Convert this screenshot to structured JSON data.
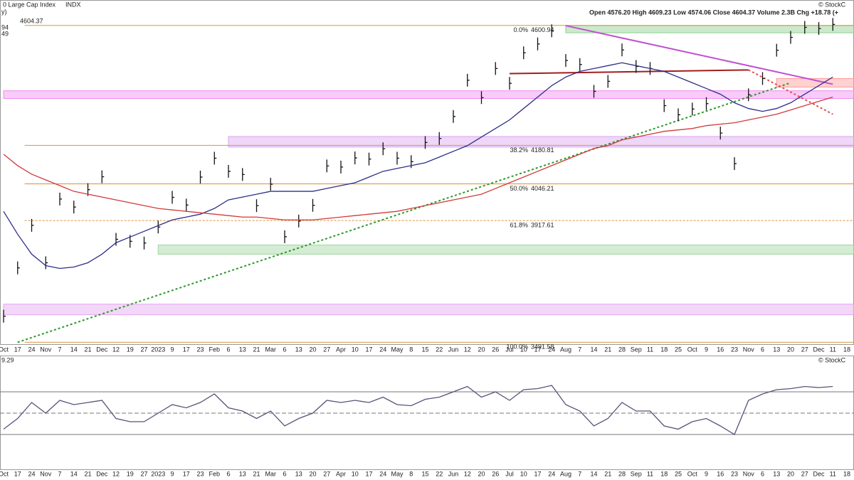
{
  "chart_data": {
    "type": "ohlc",
    "title": "0 Large Cap Index",
    "exchange": "INDX",
    "last_price": 4604.37,
    "legend_fragments": [
      "y)",
      "94",
      "49"
    ],
    "quote": "Open 4576.20  High 4609.23  Low 4574.06  Close 4604.37  Volume 2.3B  Chg +18.78 (+",
    "watermark": "© StockC",
    "categories": [
      "Oct",
      "17",
      "24",
      "Nov",
      "7",
      "14",
      "21",
      "Dec",
      "12",
      "19",
      "27",
      "2023",
      "9",
      "17",
      "23",
      "Feb",
      "6",
      "13",
      "21",
      "Mar",
      "6",
      "13",
      "20",
      "27",
      "Apr",
      "10",
      "17",
      "24",
      "May",
      "8",
      "15",
      "22",
      "Jun",
      "12",
      "20",
      "26",
      "Jul",
      "10",
      "17",
      "24",
      "Aug",
      "7",
      "14",
      "21",
      "28",
      "Sep",
      "11",
      "18",
      "25",
      "Oct",
      "9",
      "16",
      "23",
      "Nov",
      "6",
      "13",
      "20",
      "27",
      "Dec",
      "11",
      "18"
    ],
    "ylim": [
      3470,
      4640
    ],
    "series": [
      {
        "name": "Price",
        "color": "#111111",
        "values": [
          3583,
          3752,
          3901,
          3770,
          3993,
          3965,
          4026,
          4071,
          3852,
          3845,
          3839,
          3895,
          3999,
          3972,
          4070,
          4136,
          4090,
          4079,
          3970,
          4045,
          3861,
          3916,
          3971,
          4109,
          4105,
          4137,
          4133,
          4169,
          4136,
          4124,
          4191,
          4205,
          4282,
          4409,
          4348,
          4450,
          4398,
          4505,
          4536,
          4582,
          4478,
          4464,
          4370,
          4405,
          4515,
          4457,
          4450,
          4320,
          4288,
          4308,
          4327,
          4224,
          4117,
          4358,
          4415,
          4514,
          4559,
          4594,
          4590,
          4604.37,
          null
        ]
      },
      {
        "name": "MA50",
        "color": "#2e2e8a",
        "values": [
          3950,
          3870,
          3800,
          3760,
          3750,
          3755,
          3770,
          3800,
          3840,
          3860,
          3880,
          3900,
          3920,
          3930,
          3940,
          3960,
          3990,
          4000,
          4010,
          4020,
          4020,
          4020,
          4020,
          4030,
          4040,
          4050,
          4070,
          4090,
          4100,
          4110,
          4120,
          4140,
          4160,
          4180,
          4210,
          4240,
          4270,
          4310,
          4350,
          4390,
          4420,
          4440,
          4450,
          4460,
          4470,
          4460,
          4450,
          4440,
          4420,
          4400,
          4380,
          4360,
          4330,
          4310,
          4300,
          4310,
          4330,
          4360,
          4390,
          4420,
          null
        ]
      },
      {
        "name": "MA200",
        "color": "#d03a3a",
        "values": [
          4150,
          4110,
          4080,
          4060,
          4040,
          4020,
          4010,
          4000,
          3990,
          3980,
          3970,
          3960,
          3955,
          3950,
          3945,
          3940,
          3935,
          3930,
          3930,
          3925,
          3920,
          3920,
          3920,
          3925,
          3930,
          3935,
          3940,
          3945,
          3950,
          3960,
          3970,
          3980,
          3990,
          4000,
          4010,
          4030,
          4050,
          4070,
          4090,
          4110,
          4130,
          4150,
          4170,
          4180,
          4200,
          4210,
          4220,
          4230,
          4235,
          4240,
          4250,
          4255,
          4260,
          4270,
          4280,
          4290,
          4305,
          4320,
          4335,
          4350,
          null
        ]
      }
    ],
    "fib_levels": [
      {
        "label": "0.0%",
        "value": 4600.94,
        "color": "#e0a050",
        "dash": false
      },
      {
        "label": "38.2%",
        "value": 4180.81,
        "color": "#e0a050",
        "dash": false
      },
      {
        "label": "50.0%",
        "value": 4046.21,
        "color": "#e0a050",
        "dash": false
      },
      {
        "label": "61.8%",
        "value": 3917.61,
        "color": "#e0a050",
        "dash": true
      },
      {
        "label": "100.0%",
        "value": 3491.58,
        "color": "#e0a050",
        "dash": false
      }
    ],
    "zones": [
      {
        "low": 4575,
        "high": 4600,
        "from": 40,
        "color": "#8fcf8f"
      },
      {
        "low": 4385,
        "high": 4415,
        "from": 55,
        "color": "#ff9a9a"
      },
      {
        "low": 4345,
        "high": 4372,
        "from": 0,
        "color": "#f08cf0"
      },
      {
        "low": 4175,
        "high": 4212,
        "from": 16,
        "color": "#d9a6f0"
      },
      {
        "low": 3800,
        "high": 3832,
        "from": 11,
        "color": "#9fd49f"
      },
      {
        "low": 3588,
        "high": 3625,
        "from": 0,
        "color": "#e3a6f0"
      }
    ],
    "trendlines": [
      {
        "x0": 1,
        "y0": 3491.58,
        "x1": 56,
        "y1": 4400,
        "color": "#2a9a2a",
        "dash": true
      },
      {
        "x0": 40,
        "y0": 4600,
        "x1": 59,
        "y1": 4395,
        "color": "#c050d0",
        "dash": false
      },
      {
        "x0": 36,
        "y0": 4432,
        "x1": 53,
        "y1": 4445,
        "color": "#a01e1e",
        "dash": false
      },
      {
        "x0": 53,
        "y0": 4445,
        "x1": 59,
        "y1": 4290,
        "color": "#e05050",
        "dash": true
      }
    ],
    "rsi": {
      "label": "9.29",
      "color": "#55557a",
      "ylim": [
        0,
        100
      ],
      "levels": [
        70,
        50,
        30
      ],
      "values": [
        35,
        45,
        60,
        50,
        62,
        58,
        60,
        62,
        45,
        42,
        42,
        50,
        58,
        55,
        60,
        68,
        55,
        52,
        45,
        52,
        38,
        45,
        50,
        62,
        60,
        62,
        60,
        65,
        58,
        57,
        63,
        65,
        70,
        75,
        65,
        70,
        62,
        72,
        73,
        76,
        58,
        52,
        38,
        45,
        60,
        52,
        52,
        38,
        35,
        42,
        45,
        38,
        30,
        62,
        68,
        72,
        73,
        75,
        74,
        75,
        null
      ]
    }
  }
}
